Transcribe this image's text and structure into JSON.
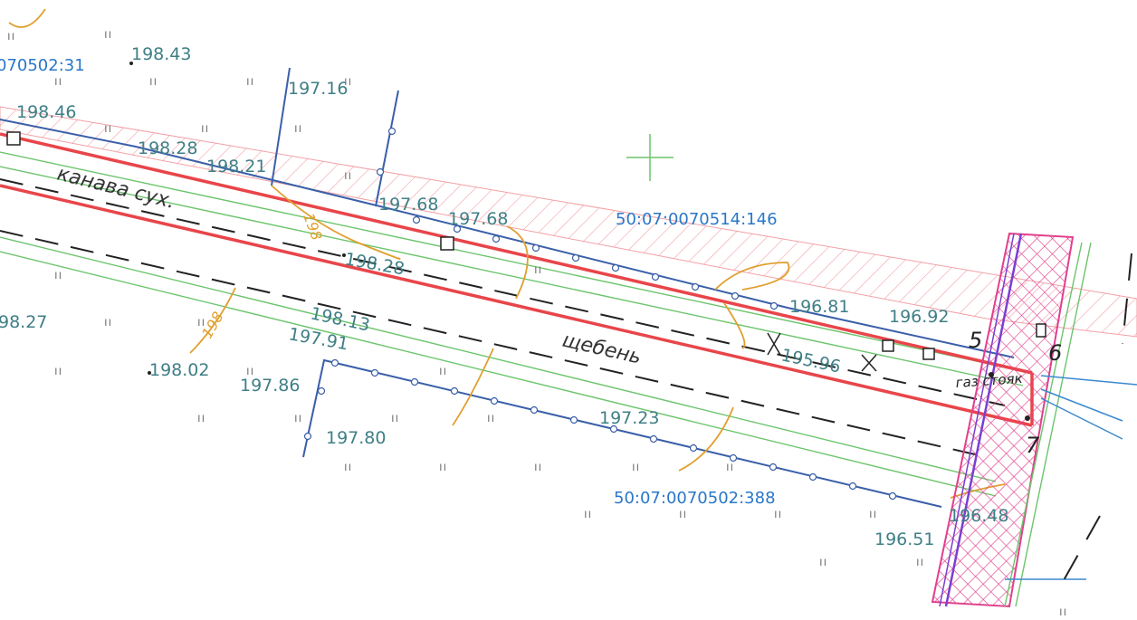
{
  "map": {
    "accent_colors": {
      "boundary_red": "#e8454a",
      "fence_blue": "#3a5fa8",
      "contour_orange": "#e0a030",
      "vegetation_green": "#6cc46c",
      "hatch_pink": "#e0408c",
      "parcel_label_blue": "#2a77c9",
      "elevation_label_teal": "#3f7f86"
    },
    "parcel_labels": [
      "070502:31",
      "50:07:0070514:146",
      "50:07:0070502:388"
    ],
    "elevation_marks": [
      "198.43",
      "197.16",
      "198.46",
      "198.28",
      "198.21",
      "197.68",
      "197.68",
      "198.28",
      "198.13",
      "197.91",
      "98.27",
      "198.02",
      "197.86",
      "197.80",
      "197.23",
      "196.81",
      "196.92",
      "195.96",
      "196.51",
      "196.48"
    ],
    "contour_labels": [
      "198",
      "198"
    ],
    "feature_labels": {
      "ditch": "канава сух.",
      "gravel": "щебень",
      "gas_pipe": "газ стояк"
    },
    "point_numbers": [
      "5",
      "6",
      "7"
    ],
    "grass_symbol": "ıı",
    "icons": {
      "crosshair": "grid-cross-icon",
      "well": "well-square-icon"
    }
  }
}
